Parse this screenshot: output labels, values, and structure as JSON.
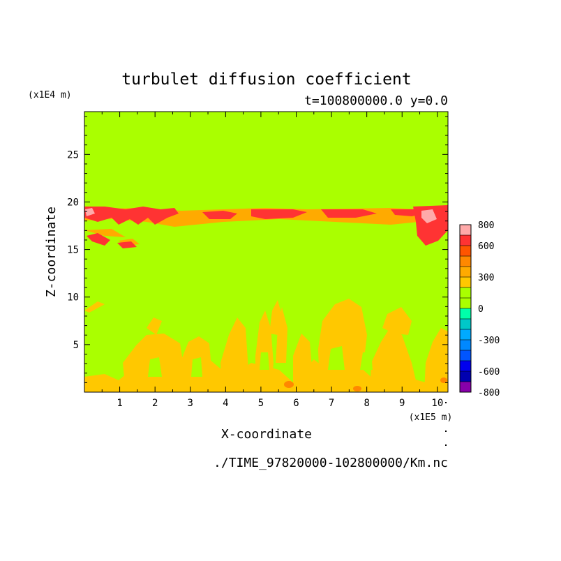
{
  "chart_data": {
    "type": "heatmap",
    "title": "turbulet diffusion coefficient",
    "subtitle": "t=100800000.0 y=0.0",
    "xlabel": "X-coordinate",
    "ylabel": "Z-coordinate",
    "x_unit": "(x1E5 m)",
    "y_unit": "(x1E4 m)",
    "xlim": [
      0,
      10.3
    ],
    "ylim": [
      0,
      29.5
    ],
    "x_ticks": [
      1,
      2,
      3,
      4,
      5,
      6,
      7,
      8,
      9,
      10
    ],
    "y_ticks": [
      5,
      10,
      15,
      20,
      25
    ],
    "x_tick_labels": [
      "1",
      "2",
      "3",
      "4",
      "5",
      "6",
      "7",
      "8",
      "9",
      "10"
    ],
    "y_tick_labels": [
      "5",
      "10",
      "15",
      "20",
      "25"
    ],
    "background_level": 0,
    "colorbar": {
      "levels": [
        -800,
        -700,
        -600,
        -500,
        -400,
        -300,
        -200,
        -100,
        0,
        100,
        200,
        300,
        400,
        500,
        600,
        700,
        800
      ],
      "colors": [
        "#8800aa",
        "#0000b0",
        "#0000ee",
        "#0055ff",
        "#0088ff",
        "#00aaff",
        "#00c8c8",
        "#00ffaa",
        "#aaff00",
        "#aaff00",
        "#ffc800",
        "#ffaa00",
        "#ff8800",
        "#ff5500",
        "#ff3333",
        "#ffaaaa"
      ],
      "tick_labels": [
        "800",
        "600",
        "300",
        "0",
        "-300",
        "-600",
        "-800"
      ],
      "tick_values": [
        800,
        600,
        300,
        0,
        -300,
        -600,
        -800
      ]
    },
    "regions": [
      {
        "name": "upper-band",
        "level": 300,
        "x_range": [
          0,
          10.3
        ],
        "z_range": [
          18.2,
          19.6
        ]
      },
      {
        "name": "upper-band-strong",
        "level": 500,
        "x_range": [
          0,
          10.3
        ],
        "z_range": [
          18.6,
          19.8
        ]
      },
      {
        "name": "lower-plumes",
        "level": 200,
        "x_range": [
          0,
          10.3
        ],
        "z_range": [
          0,
          10
        ]
      }
    ],
    "grid": false,
    "legend": "right-colorbar"
  },
  "footer": {
    "source_file": "./TIME_97820000-102800000/Km.nc"
  }
}
